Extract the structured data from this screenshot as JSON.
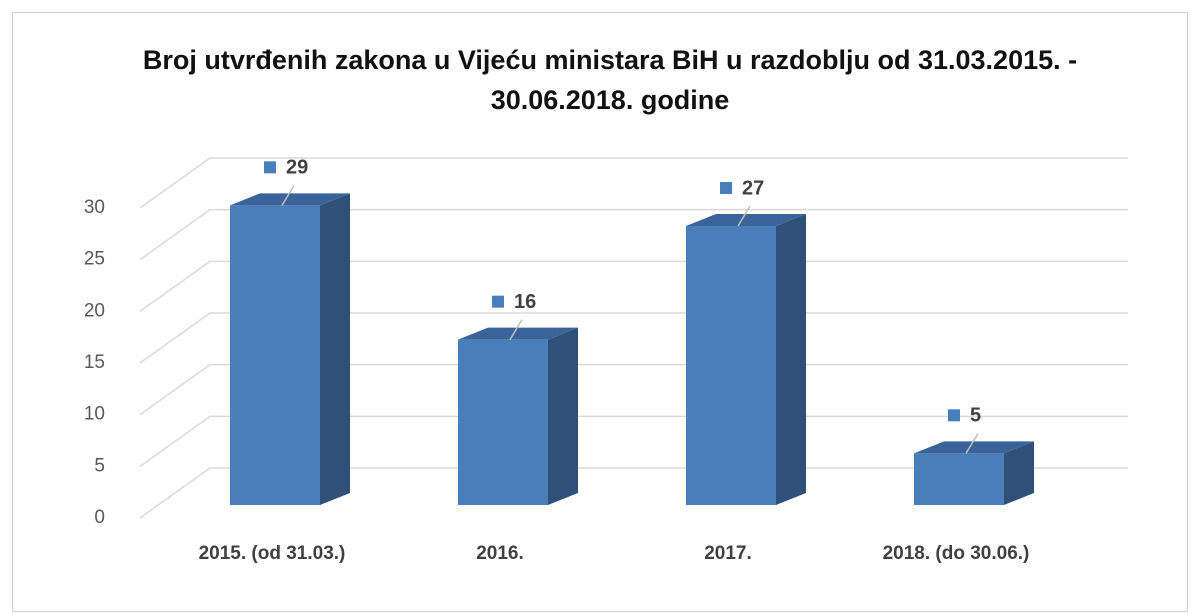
{
  "chart_data": {
    "type": "bar3d",
    "title": "Broj utvrđenih zakona u Vijeću ministara BiH u razdoblju od 31.03.2015. - 30.06.2018. godine",
    "categories": [
      "2015. (od 31.03.)",
      "2016.",
      "2017.",
      "2018. (do 30.06.)"
    ],
    "values": [
      29,
      16,
      27,
      5
    ],
    "color": "#4a7ebb",
    "ylim": [
      0,
      30
    ],
    "yticks": [
      0,
      5,
      10,
      15,
      20,
      25,
      30
    ],
    "grid": true
  }
}
